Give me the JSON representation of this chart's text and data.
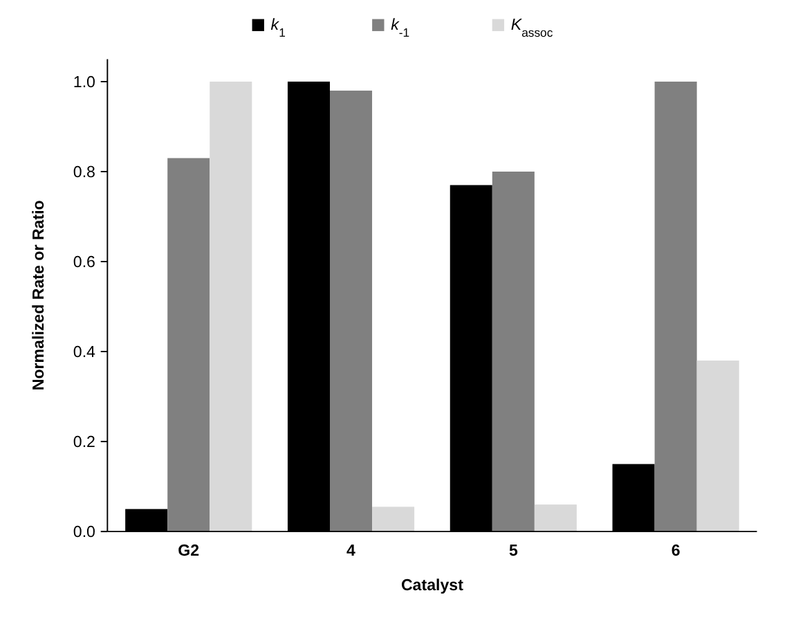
{
  "chart_data": {
    "type": "bar",
    "xlabel": "Catalyst",
    "ylabel": "Normalized Rate or Ratio",
    "categories": [
      "G2",
      "4",
      "5",
      "6"
    ],
    "series": [
      {
        "name": "k$_{1}$",
        "color": "#000000",
        "values": [
          0.05,
          1.0,
          0.77,
          0.15
        ]
      },
      {
        "name": "k$_{-1}$",
        "color": "#808080",
        "values": [
          0.83,
          0.98,
          0.8,
          1.0
        ]
      },
      {
        "name": "K$_{assoc}$",
        "color": "#d9d9d9",
        "values": [
          1.0,
          0.055,
          0.06,
          0.38
        ]
      }
    ],
    "ylim": [
      0,
      1.05
    ],
    "yticks": [
      {
        "value": 0,
        "label": "0.0"
      },
      0.2,
      0.4,
      0.6,
      0.8,
      {
        "value": 1,
        "label": "1.0"
      }
    ],
    "grid": false,
    "legend": "top"
  }
}
